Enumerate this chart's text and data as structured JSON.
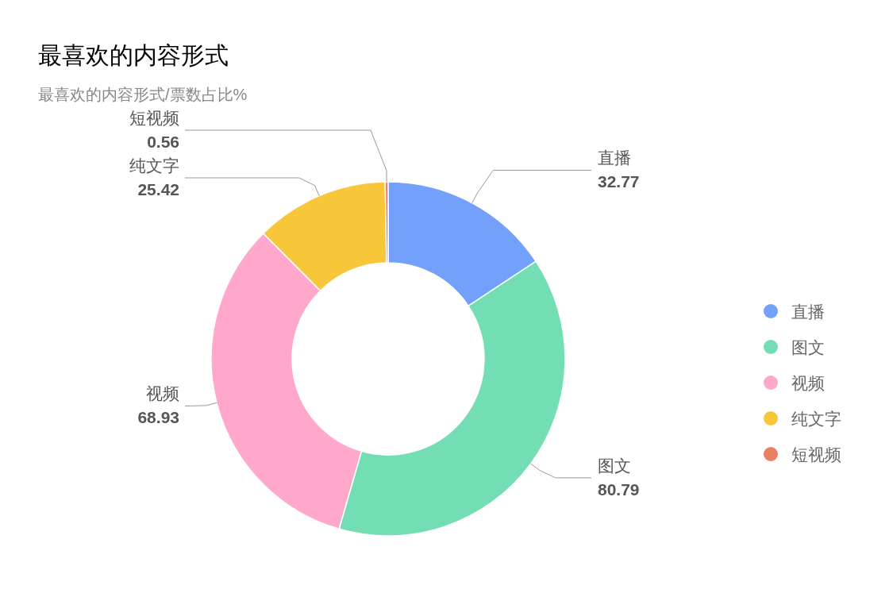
{
  "chart_data": {
    "type": "donut",
    "title": "最喜欢的内容形式",
    "subtitle": "最喜欢的内容形式/票数占比%",
    "categories": [
      "直播",
      "图文",
      "视频",
      "纯文字",
      "短视频"
    ],
    "values": [
      32.77,
      80.79,
      68.93,
      25.42,
      0.56
    ],
    "colors": [
      "#73a0fa",
      "#73deb3",
      "#ffa8cc",
      "#f7c739",
      "#eb7e65"
    ],
    "data_labels": true,
    "legend": "right"
  }
}
